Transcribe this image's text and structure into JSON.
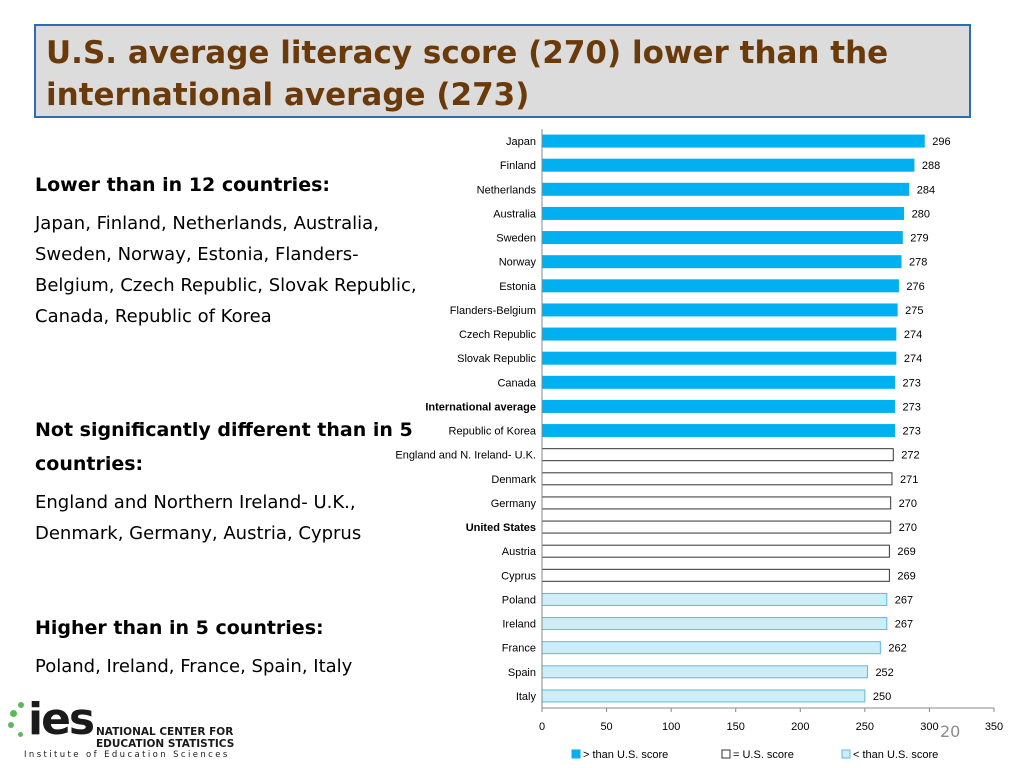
{
  "slide": {
    "title": "U.S. average literacy score (270) lower than the international average (273)",
    "page_number": "20"
  },
  "sections": [
    {
      "heading": "Lower than in 12 countries",
      "colon": ":",
      "body": "Japan, Finland, Netherlands, Australia, Sweden, Norway, Estonia, Flanders-Belgium, Czech Republic, Slovak Republic, Canada, Republic of Korea"
    },
    {
      "heading": "Not significantly different  than in 5 countries",
      "colon": ":",
      "body": "England and Northern Ireland- U.K., Denmark, Germany, Austria, Cyprus"
    },
    {
      "heading": "Higher than in 5 countries",
      "colon": ":",
      "body": "Poland, Ireland, France, Spain, Italy"
    }
  ],
  "logo": {
    "wordmark": "ies",
    "line1": "NATIONAL CENTER FOR",
    "line2": "EDUCATION STATISTICS",
    "subtitle": "Institute of Education Sciences"
  },
  "colors": {
    "higher": "#00b0f0",
    "equal": "#ffffff",
    "lower": "#cdeef8",
    "lower_border": "#5fb8e0",
    "equal_border": "#333333",
    "title_text": "#6b3a0a",
    "title_border": "#2e6db4"
  },
  "chart_data": {
    "type": "bar",
    "orientation": "horizontal",
    "categories": [
      "Japan",
      "Finland",
      "Netherlands",
      "Australia",
      "Sweden",
      "Norway",
      "Estonia",
      "Flanders-Belgium",
      "Czech Republic",
      "Slovak Republic",
      "Canada",
      "International average",
      "Republic of Korea",
      "England and N. Ireland- U.K.",
      "Denmark",
      "Germany",
      "United States",
      "Austria",
      "Cyprus",
      "Poland",
      "Ireland",
      "France",
      "Spain",
      "Italy"
    ],
    "values": [
      296,
      288,
      284,
      280,
      279,
      278,
      276,
      275,
      274,
      274,
      273,
      273,
      273,
      272,
      271,
      270,
      270,
      269,
      269,
      267,
      267,
      262,
      252,
      250
    ],
    "groups": [
      "higher",
      "higher",
      "higher",
      "higher",
      "higher",
      "higher",
      "higher",
      "higher",
      "higher",
      "higher",
      "higher",
      "higher",
      "higher",
      "equal",
      "equal",
      "equal",
      "equal",
      "equal",
      "equal",
      "lower",
      "lower",
      "lower",
      "lower",
      "lower"
    ],
    "bold_categories": [
      "International average",
      "United States"
    ],
    "xlim": [
      0,
      350
    ],
    "xticks": [
      0,
      50,
      100,
      150,
      200,
      250,
      300,
      350
    ],
    "legend": [
      {
        "group": "higher",
        "label": "> than U.S. score"
      },
      {
        "group": "equal",
        "label": "= U.S. score"
      },
      {
        "group": "lower",
        "label": "< than U.S. score"
      }
    ],
    "legend_position": "bottom",
    "grid": false
  }
}
